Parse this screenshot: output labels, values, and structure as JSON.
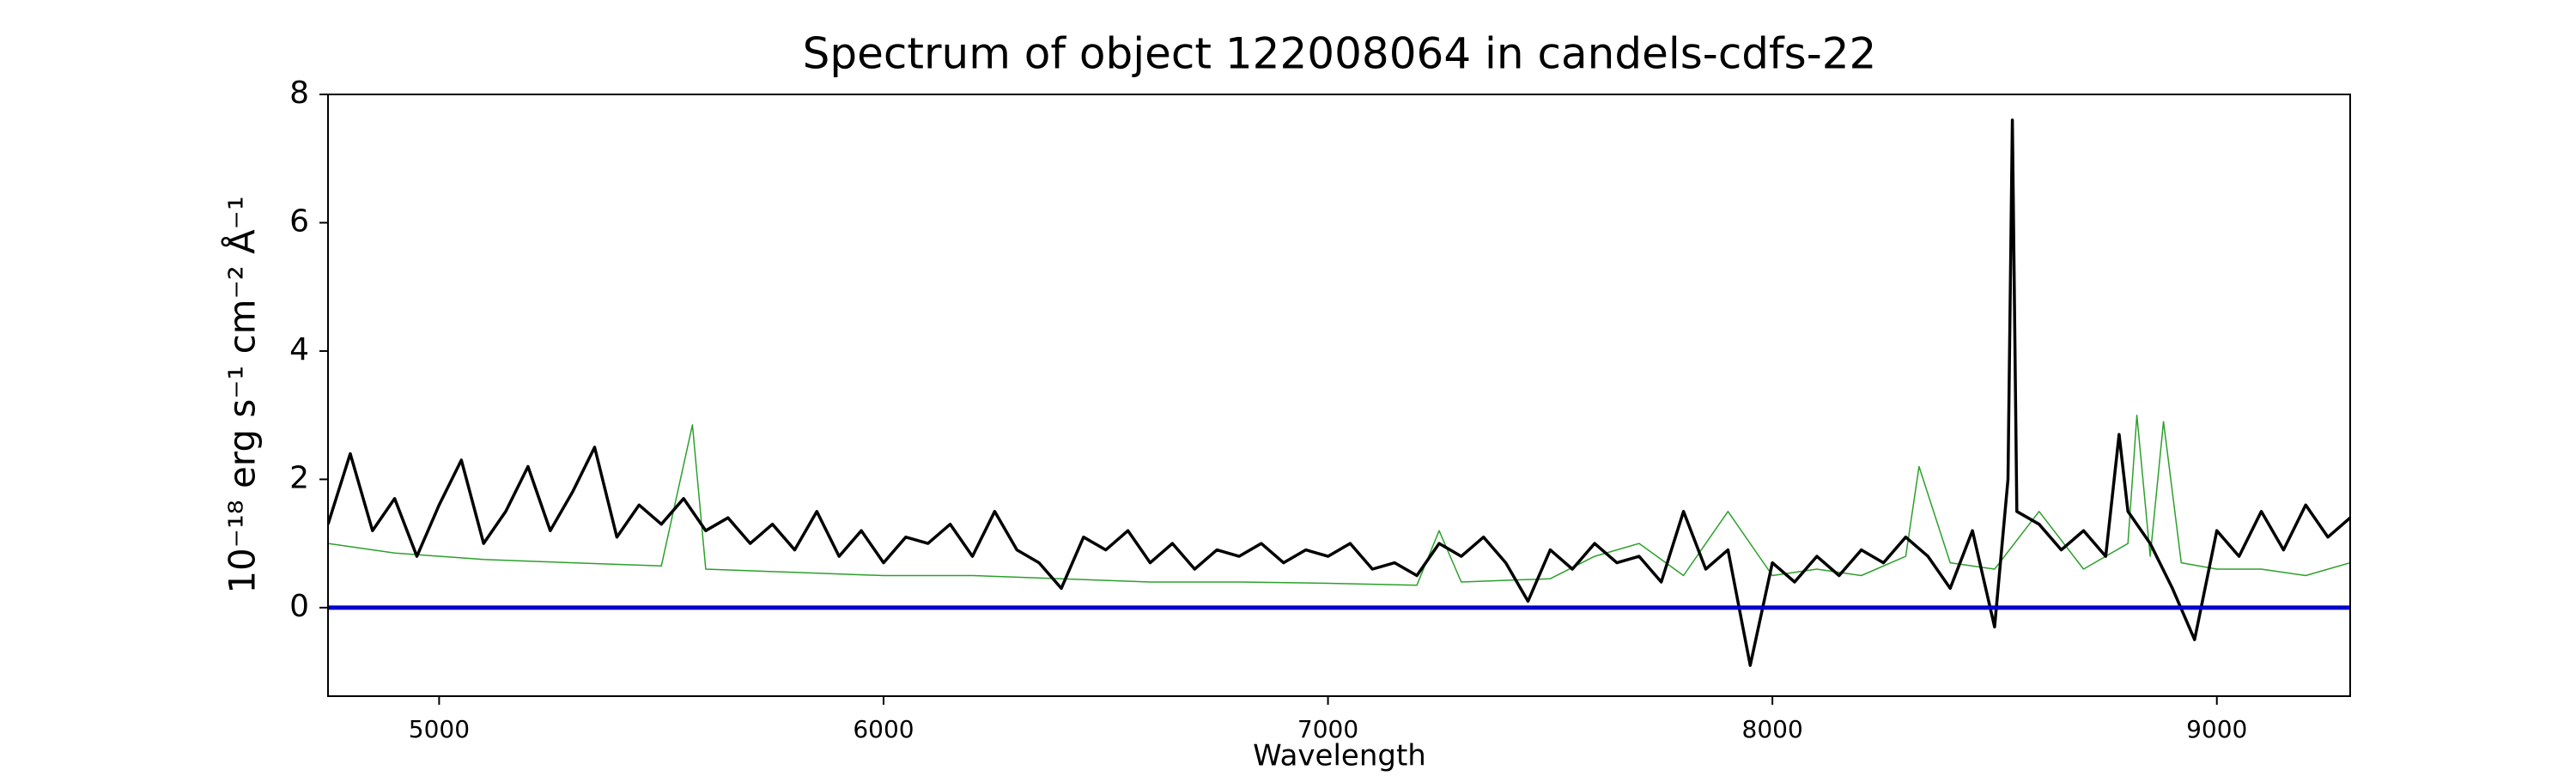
{
  "chart_data": {
    "type": "line",
    "title": "Spectrum of object 122008064 in candels-cdfs-22",
    "xlabel": "Wavelength",
    "ylabel": "10⁻¹⁸ erg s⁻¹ cm⁻² Å⁻¹",
    "xlim": [
      4750,
      9300
    ],
    "ylim": [
      -1.38,
      8
    ],
    "xticks": [
      5000,
      6000,
      7000,
      8000,
      9000
    ],
    "yticks": [
      0,
      2,
      4,
      6,
      8
    ],
    "series": [
      {
        "color": "#2ca02c",
        "linewidth": 1.5,
        "x": [
          4750,
          4900,
          5100,
          5300,
          5500,
          5570,
          5600,
          5800,
          6000,
          6200,
          6400,
          6600,
          6800,
          7000,
          7200,
          7250,
          7300,
          7500,
          7600,
          7700,
          7800,
          7900,
          8000,
          8100,
          8200,
          8300,
          8330,
          8400,
          8500,
          8600,
          8700,
          8800,
          8820,
          8850,
          8880,
          8920,
          9000,
          9100,
          9200,
          9300
        ],
        "values": [
          1.0,
          0.85,
          0.75,
          0.7,
          0.65,
          2.85,
          0.6,
          0.55,
          0.5,
          0.5,
          0.45,
          0.4,
          0.4,
          0.38,
          0.35,
          1.2,
          0.4,
          0.45,
          0.8,
          1.0,
          0.5,
          1.5,
          0.5,
          0.6,
          0.5,
          0.8,
          2.2,
          0.7,
          0.6,
          1.5,
          0.6,
          1.0,
          3.0,
          0.8,
          2.9,
          0.7,
          0.6,
          0.6,
          0.5,
          0.7
        ]
      },
      {
        "color": "#000000",
        "linewidth": 3.5,
        "x": [
          4750,
          4800,
          4850,
          4900,
          4950,
          5000,
          5050,
          5100,
          5150,
          5200,
          5250,
          5300,
          5350,
          5400,
          5450,
          5500,
          5550,
          5600,
          5650,
          5700,
          5750,
          5800,
          5850,
          5900,
          5950,
          6000,
          6050,
          6100,
          6150,
          6200,
          6250,
          6300,
          6350,
          6400,
          6450,
          6500,
          6550,
          6600,
          6650,
          6700,
          6750,
          6800,
          6850,
          6900,
          6950,
          7000,
          7050,
          7100,
          7150,
          7200,
          7250,
          7300,
          7350,
          7400,
          7450,
          7500,
          7550,
          7600,
          7650,
          7700,
          7750,
          7800,
          7850,
          7900,
          7950,
          8000,
          8050,
          8100,
          8150,
          8200,
          8250,
          8300,
          8350,
          8400,
          8450,
          8500,
          8530,
          8540,
          8550,
          8600,
          8650,
          8700,
          8750,
          8780,
          8800,
          8850,
          8900,
          8950,
          9000,
          9050,
          9100,
          9150,
          9200,
          9250,
          9300
        ],
        "values": [
          1.3,
          2.4,
          1.2,
          1.7,
          0.8,
          1.6,
          2.3,
          1.0,
          1.5,
          2.2,
          1.2,
          1.8,
          2.5,
          1.1,
          1.6,
          1.3,
          1.7,
          1.2,
          1.4,
          1.0,
          1.3,
          0.9,
          1.5,
          0.8,
          1.2,
          0.7,
          1.1,
          1.0,
          1.3,
          0.8,
          1.5,
          0.9,
          0.7,
          0.3,
          1.1,
          0.9,
          1.2,
          0.7,
          1.0,
          0.6,
          0.9,
          0.8,
          1.0,
          0.7,
          0.9,
          0.8,
          1.0,
          0.6,
          0.7,
          0.5,
          1.0,
          0.8,
          1.1,
          0.7,
          0.1,
          0.9,
          0.6,
          1.0,
          0.7,
          0.8,
          0.4,
          1.5,
          0.6,
          0.9,
          -0.9,
          0.7,
          0.4,
          0.8,
          0.5,
          0.9,
          0.7,
          1.1,
          0.8,
          0.3,
          1.2,
          -0.3,
          2.0,
          7.6,
          1.5,
          1.3,
          0.9,
          1.2,
          0.8,
          2.7,
          1.5,
          1.0,
          0.3,
          -0.5,
          1.2,
          0.8,
          1.5,
          0.9,
          1.6,
          1.1,
          1.4
        ]
      },
      {
        "color": "#0000cc",
        "linewidth": 5,
        "x": [
          4750,
          9300
        ],
        "values": [
          0,
          0
        ]
      }
    ]
  }
}
